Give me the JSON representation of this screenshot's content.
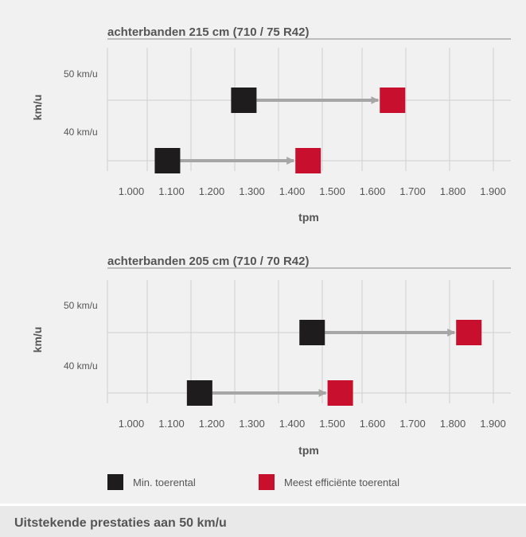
{
  "colors": {
    "min": "#1e1c1d",
    "efficient": "#c8102e",
    "arrow": "#a6a6a6",
    "grid": "#cfcfcf",
    "text": "#555555"
  },
  "legend": {
    "min_label": "Min. toerental",
    "efficient_label": "Meest efficiënte toerental"
  },
  "footer": {
    "text": "Uitstekende prestaties aan 50 km/u"
  },
  "chart_data": [
    {
      "type": "scatter",
      "title": "achterbanden 215 cm (710 / 75 R42)",
      "xlabel": "tpm",
      "ylabel": "km/u",
      "xticks": [
        "1.000",
        "1.100",
        "1.200",
        "1.300",
        "1.400",
        "1.500",
        "1.600",
        "1.700",
        "1.800",
        "1.900"
      ],
      "yticks": [
        "40 km/u",
        "50 km/u"
      ],
      "xlim": [
        950,
        1950
      ],
      "grid": true,
      "series": [
        {
          "name": "Min. toerental",
          "points": [
            {
              "speed": 50,
              "rpm": 1280
            },
            {
              "speed": 40,
              "rpm": 1090
            }
          ]
        },
        {
          "name": "Meest efficiënte toerental",
          "points": [
            {
              "speed": 50,
              "rpm": 1650
            },
            {
              "speed": 40,
              "rpm": 1440
            }
          ]
        }
      ]
    },
    {
      "type": "scatter",
      "title": "achterbanden 205 cm (710 / 70 R42)",
      "xlabel": "tpm",
      "ylabel": "km/u",
      "xticks": [
        "1.000",
        "1.100",
        "1.200",
        "1.300",
        "1.400",
        "1.500",
        "1.600",
        "1.700",
        "1.800",
        "1.900"
      ],
      "yticks": [
        "40 km/u",
        "50 km/u"
      ],
      "xlim": [
        950,
        1950
      ],
      "grid": true,
      "series": [
        {
          "name": "Min. toerental",
          "points": [
            {
              "speed": 50,
              "rpm": 1450
            },
            {
              "speed": 40,
              "rpm": 1170
            }
          ]
        },
        {
          "name": "Meest efficiënte toerental",
          "points": [
            {
              "speed": 50,
              "rpm": 1840
            },
            {
              "speed": 40,
              "rpm": 1520
            }
          ]
        }
      ]
    }
  ]
}
